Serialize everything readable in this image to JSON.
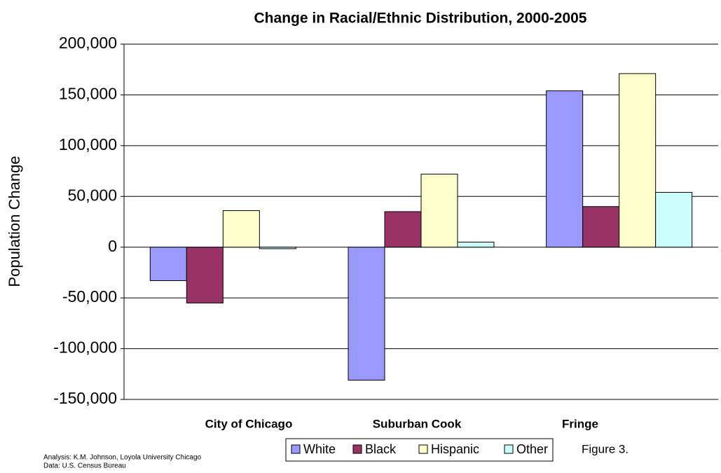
{
  "chart_data": {
    "type": "bar",
    "title": "Change in Racial/Ethnic Distribution, 2000-2005",
    "y_label": "Population Change",
    "categories": [
      "City of Chicago",
      "Suburban Cook",
      "Fringe"
    ],
    "series": [
      {
        "name": "White",
        "color": "#9999ff",
        "values": [
          -33000,
          -131000,
          154000
        ]
      },
      {
        "name": "Black",
        "color": "#993366",
        "values": [
          -55000,
          35000,
          40000
        ]
      },
      {
        "name": "Hispanic",
        "color": "#ffffcc",
        "values": [
          36000,
          72000,
          171000
        ]
      },
      {
        "name": "Other",
        "color": "#ccffff",
        "values": [
          -1500,
          5000,
          54000
        ]
      }
    ],
    "ylim": [
      -150000,
      200000
    ],
    "yticks": [
      {
        "value": -150000,
        "label": "-150,000"
      },
      {
        "value": -100000,
        "label": "-100,000"
      },
      {
        "value": -50000,
        "label": "-50,000"
      },
      0,
      {
        "value": 50000,
        "label": "50,000"
      },
      {
        "value": 100000,
        "label": "100,000"
      },
      {
        "value": 150000,
        "label": "150,000"
      },
      {
        "value": 200000,
        "label": "200,000"
      }
    ],
    "grid": true,
    "legend": "bottom",
    "source_lines": [
      "Analysis: K.M. Johnson, Loyola University Chicago",
      "Data: U.S. Census Bureau"
    ],
    "figure_label": "Figure 3."
  }
}
